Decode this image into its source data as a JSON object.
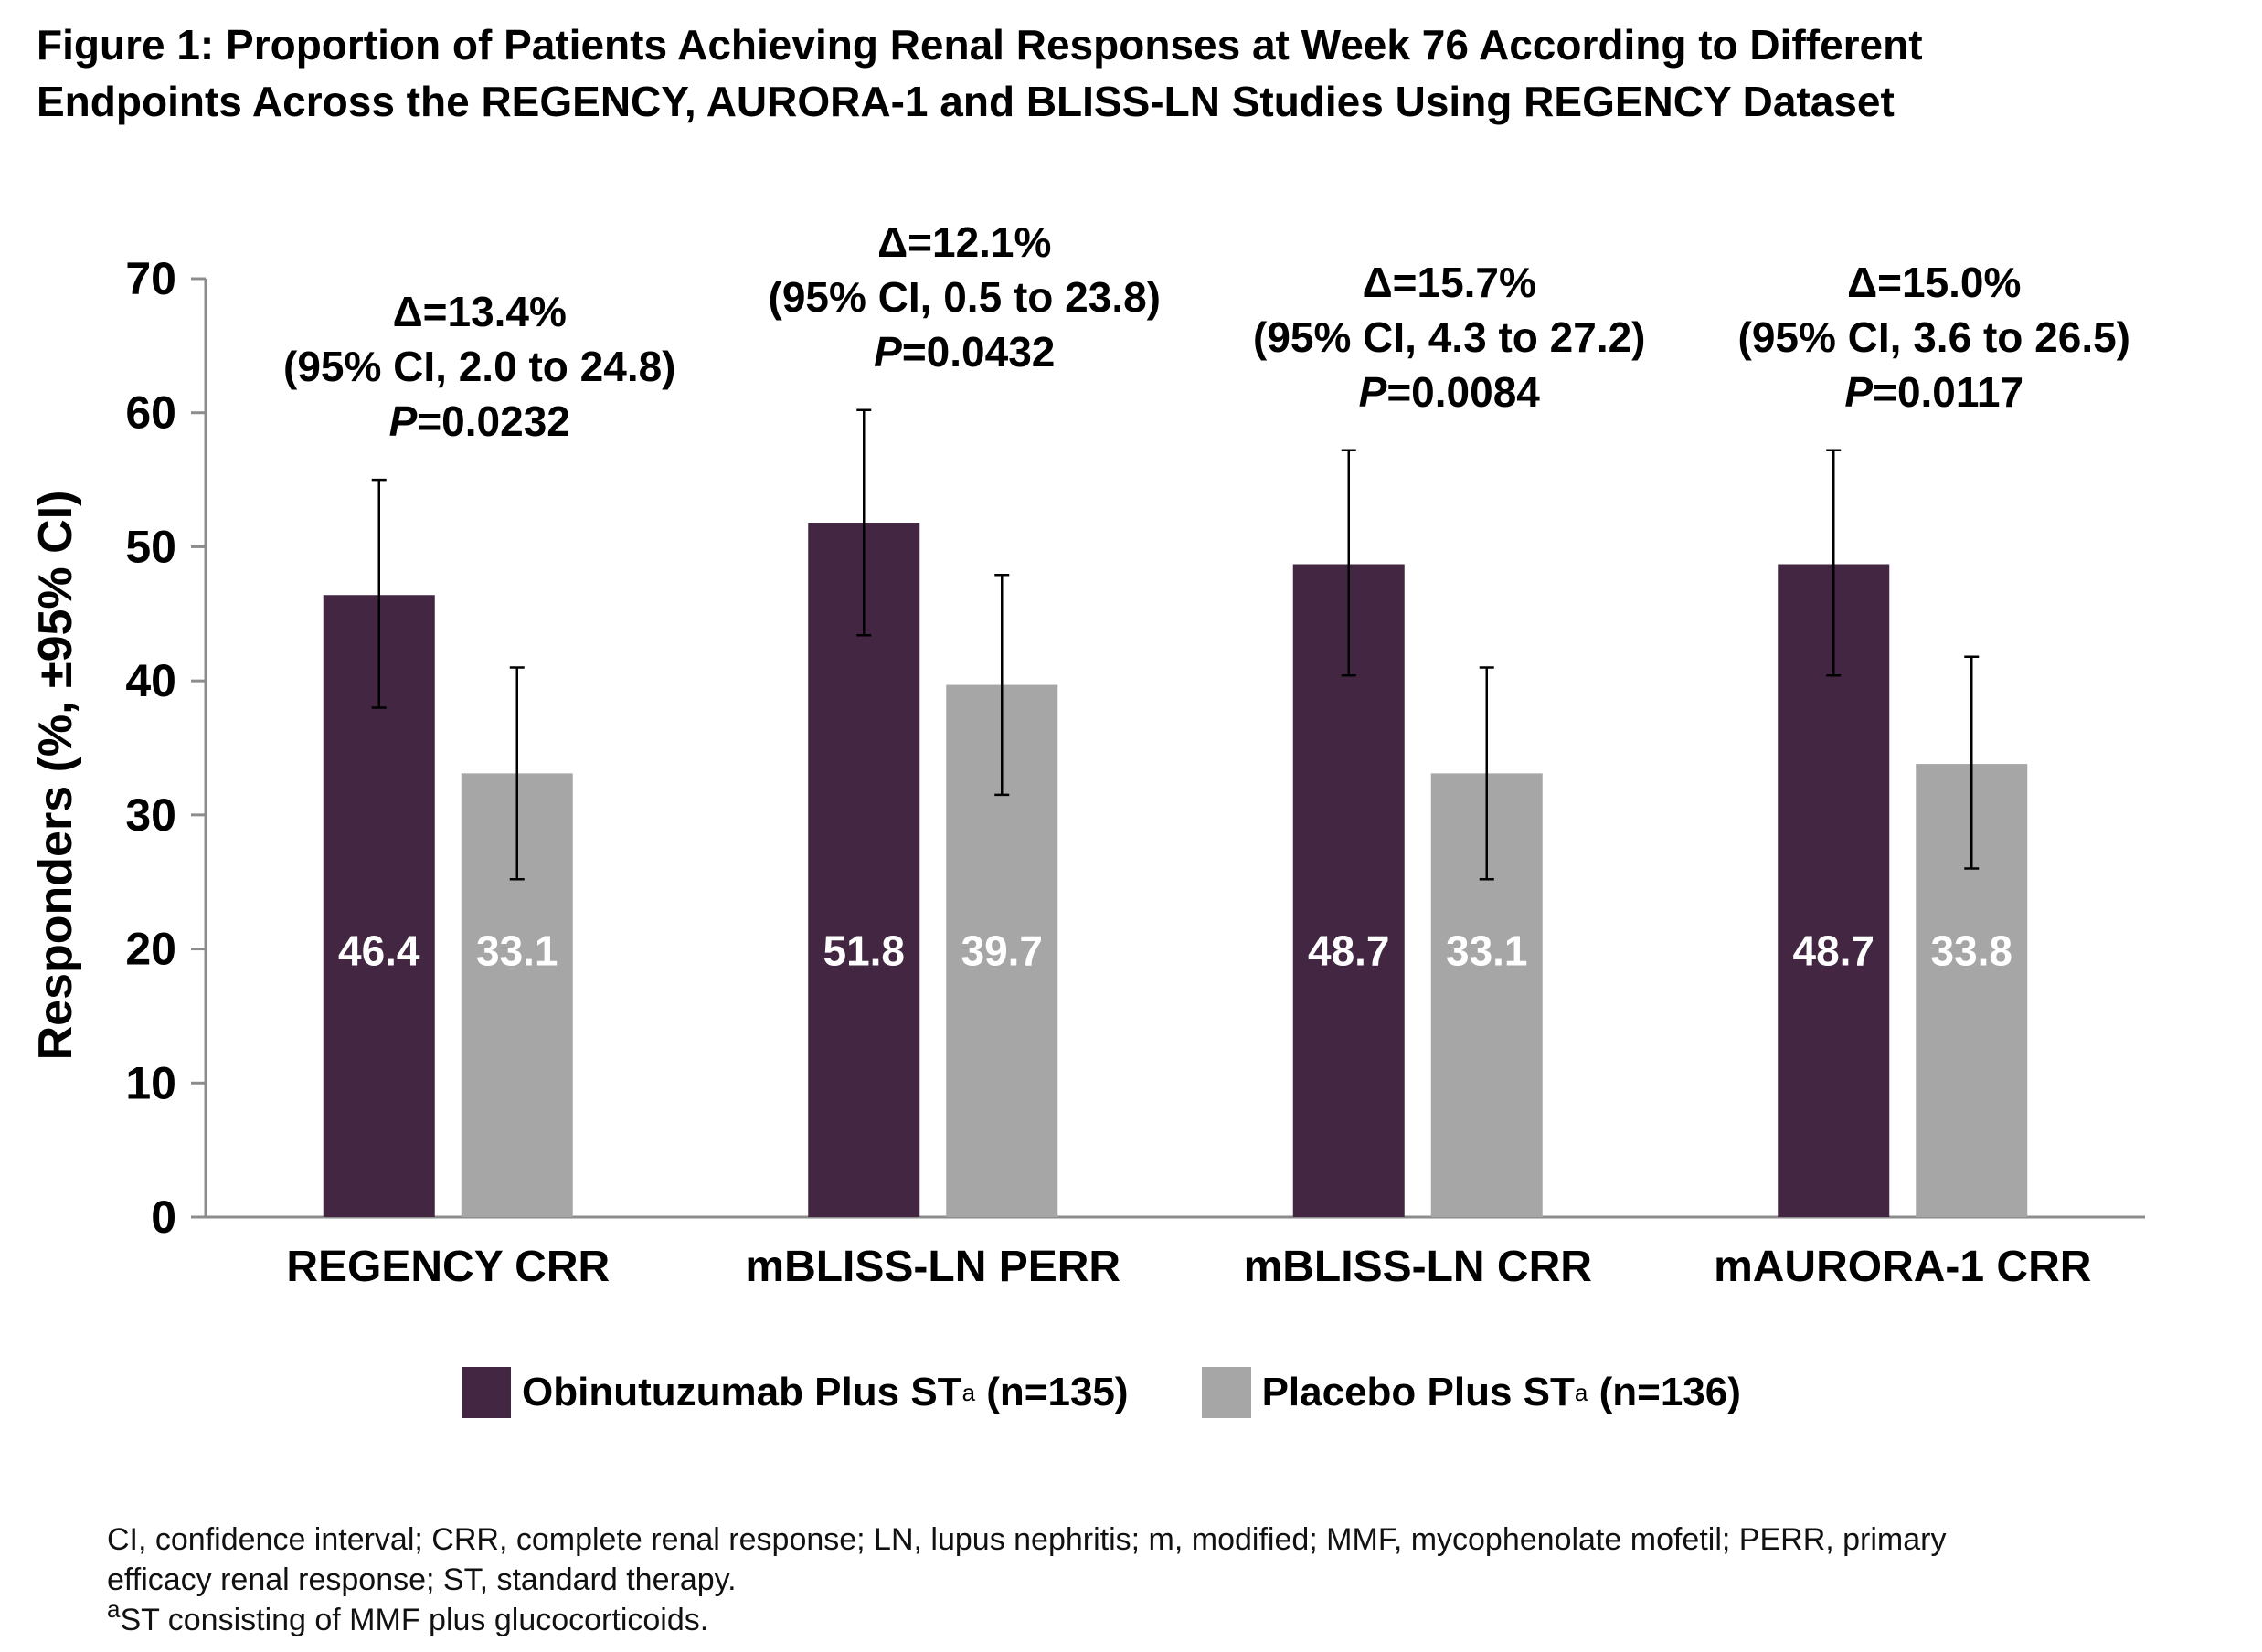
{
  "title": {
    "line1": "Figure 1: Proportion of Patients Achieving Renal Responses at Week 76 According to Different",
    "line2": "Endpoints Across the REGENCY, AURORA-1 and BLISS-LN Studies Using REGENCY Dataset"
  },
  "chart_data": {
    "type": "bar",
    "title": "Proportion of Patients Achieving Renal Responses at Week 76 According to Different Endpoints Across the REGENCY, AURORA-1 and BLISS-LN Studies Using REGENCY Dataset",
    "xlabel": "",
    "ylabel": "Responders (%, ±95% CI)",
    "ylim": [
      0,
      70
    ],
    "yticks": [
      0,
      10,
      20,
      30,
      40,
      50,
      60,
      70
    ],
    "grid": false,
    "categories": [
      "REGENCY CRR",
      "mBLISS-LN PERR",
      "mBLISS-LN CRR",
      "mAURORA-1 CRR"
    ],
    "series": [
      {
        "name": "Obinutuzumab Plus ST",
        "color": "#432642",
        "values": [
          46.4,
          51.8,
          48.7,
          48.7
        ],
        "ci_low": [
          38.0,
          43.4,
          40.4,
          40.4
        ],
        "ci_high": [
          55.0,
          60.2,
          57.2,
          57.2
        ]
      },
      {
        "name": "Placebo Plus ST",
        "color": "#a6a6a6",
        "values": [
          33.1,
          39.7,
          33.1,
          33.8
        ],
        "ci_low": [
          25.2,
          31.5,
          25.2,
          26.0
        ],
        "ci_high": [
          41.0,
          47.9,
          41.0,
          41.8
        ]
      }
    ],
    "annotations": [
      {
        "delta": "Δ=13.4%",
        "ci": "(95% CI, 2.0 to 24.8)",
        "p_label": "P",
        "p_value": "=0.0232"
      },
      {
        "delta": "Δ=12.1%",
        "ci": "(95% CI, 0.5 to 23.8)",
        "p_label": "P",
        "p_value": "=0.0432"
      },
      {
        "delta": "Δ=15.7%",
        "ci": "(95% CI, 4.3 to 27.2)",
        "p_label": "P",
        "p_value": "=0.0084"
      },
      {
        "delta": "Δ=15.0%",
        "ci": "(95% CI, 3.6 to 26.5)",
        "p_label": "P",
        "p_value": "=0.0117"
      }
    ]
  },
  "legend": {
    "items": [
      {
        "label": "Obinutuzumab Plus ST",
        "sup": "a",
        "n": "(n=135)",
        "color": "#432642"
      },
      {
        "label": "Placebo Plus ST",
        "sup": "a",
        "n": "(n=136)",
        "color": "#a6a6a6"
      }
    ]
  },
  "footnote": {
    "line1": "CI, confidence interval; CRR, complete renal response; LN, lupus nephritis; m, modified; MMF, mycophenolate mofetil; PERR, primary",
    "line2": "efficacy renal response; ST, standard therapy.",
    "line3_sup": "a",
    "line3": "ST consisting of MMF plus glucocorticoids."
  }
}
